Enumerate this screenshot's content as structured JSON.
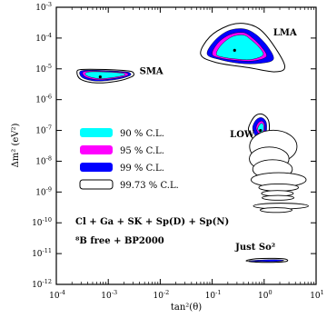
{
  "chart_data": {
    "type": "contour",
    "xlabel": "tan²(θ)",
    "ylabel": "Δm² (eV²)",
    "x_scale": "log",
    "y_scale": "log",
    "xlim": [
      0.0001,
      10
    ],
    "ylim": [
      1e-12,
      0.001
    ],
    "x_ticks": [
      {
        "value": 0.0001,
        "base": "10",
        "exp": "-4"
      },
      {
        "value": 0.001,
        "base": "10",
        "exp": "-3"
      },
      {
        "value": 0.01,
        "base": "10",
        "exp": "-2"
      },
      {
        "value": 0.1,
        "base": "10",
        "exp": "-1"
      },
      {
        "value": 1,
        "base": "10",
        "exp": "0"
      },
      {
        "value": 10,
        "base": "10",
        "exp": "1"
      }
    ],
    "y_ticks": [
      {
        "value": 1e-12,
        "base": "10",
        "exp": "-12"
      },
      {
        "value": 1e-11,
        "base": "10",
        "exp": "-11"
      },
      {
        "value": 1e-10,
        "base": "10",
        "exp": "-10"
      },
      {
        "value": 1e-09,
        "base": "10",
        "exp": "-9"
      },
      {
        "value": 1e-08,
        "base": "10",
        "exp": "-8"
      },
      {
        "value": 1e-07,
        "base": "10",
        "exp": "-7"
      },
      {
        "value": 1e-06,
        "base": "10",
        "exp": "-6"
      },
      {
        "value": 1e-05,
        "base": "10",
        "exp": "-5"
      },
      {
        "value": 0.0001,
        "base": "10",
        "exp": "-4"
      },
      {
        "value": 0.001,
        "base": "10",
        "exp": "-3"
      }
    ],
    "series": [
      {
        "name": "90 % C.L.",
        "color": "#00ffff"
      },
      {
        "name": "95 % C.L.",
        "color": "#ff00ff"
      },
      {
        "name": "99 % C.L.",
        "color": "#0000ff"
      },
      {
        "name": "99.73 % C.L.",
        "color": "#ffffff"
      }
    ],
    "regions": [
      {
        "name": "LMA",
        "best_fit": {
          "x": 0.27,
          "y": 4e-05
        },
        "contours": {
          "99.73 % C.L.": [
            [
              0.06,
              3e-05
            ],
            [
              0.09,
              0.00011
            ],
            [
              0.2,
              0.00025
            ],
            [
              0.4,
              0.0003
            ],
            [
              0.8,
              0.0002
            ],
            [
              1.5,
              6e-05
            ],
            [
              2.5,
              1.2e-05
            ],
            [
              1.6,
              8e-06
            ],
            [
              0.5,
              1.1e-05
            ],
            [
              0.12,
              1.6e-05
            ]
          ],
          "99 % C.L.": [
            [
              0.08,
              3e-05
            ],
            [
              0.11,
              8e-05
            ],
            [
              0.2,
              0.00017
            ],
            [
              0.4,
              0.0002
            ],
            [
              0.7,
              0.00013
            ],
            [
              1.2,
              5e-05
            ],
            [
              1.5,
              2e-05
            ],
            [
              0.8,
              1.5e-05
            ],
            [
              0.35,
              1.5e-05
            ],
            [
              0.14,
              2e-05
            ]
          ],
          "95 % C.L.": [
            [
              0.1,
              3e-05
            ],
            [
              0.13,
              7e-05
            ],
            [
              0.22,
              0.00013
            ],
            [
              0.4,
              0.00015
            ],
            [
              0.6,
              0.0001
            ],
            [
              0.9,
              5e-05
            ],
            [
              1.1,
              2.5e-05
            ],
            [
              0.6,
              1.8e-05
            ],
            [
              0.28,
              1.9e-05
            ],
            [
              0.15,
              2.2e-05
            ]
          ],
          "90 % C.L.": [
            [
              0.12,
              3e-05
            ],
            [
              0.15,
              6e-05
            ],
            [
              0.24,
              0.00011
            ],
            [
              0.4,
              0.000125
            ],
            [
              0.55,
              9e-05
            ],
            [
              0.8,
              5e-05
            ],
            [
              0.95,
              2.8e-05
            ],
            [
              0.55,
              2e-05
            ],
            [
              0.28,
              2.1e-05
            ],
            [
              0.16,
              2.4e-05
            ]
          ]
        }
      },
      {
        "name": "SMA",
        "best_fit": {
          "x": 0.0007,
          "y": 5.5e-06
        },
        "contours": {
          "99.73 % C.L.": [
            [
              0.00025,
              7.5e-06
            ],
            [
              0.0003,
              9.5e-06
            ],
            [
              0.0009,
              9.5e-06
            ],
            [
              0.0025,
              8.5e-06
            ],
            [
              0.0031,
              7e-06
            ],
            [
              0.0028,
              5.5e-06
            ],
            [
              0.0015,
              4e-06
            ],
            [
              0.0006,
              3.5e-06
            ],
            [
              0.0003,
              4.5e-06
            ]
          ],
          "99 % C.L.": [
            [
              0.00028,
              7.5e-06
            ],
            [
              0.00035,
              9e-06
            ],
            [
              0.0009,
              8.8e-06
            ],
            [
              0.0022,
              8e-06
            ],
            [
              0.0027,
              7e-06
            ],
            [
              0.0025,
              5.8e-06
            ],
            [
              0.0014,
              4.5e-06
            ],
            [
              0.0006,
              4e-06
            ],
            [
              0.00033,
              5e-06
            ]
          ],
          "95 % C.L.": [
            [
              0.00032,
              7.3e-06
            ],
            [
              0.0004,
              8.5e-06
            ],
            [
              0.0009,
              8.3e-06
            ],
            [
              0.002,
              7.6e-06
            ],
            [
              0.0024,
              6.8e-06
            ],
            [
              0.0022,
              5.9e-06
            ],
            [
              0.0013,
              4.9e-06
            ],
            [
              0.00065,
              4.4e-06
            ],
            [
              0.00038,
              5.3e-06
            ]
          ],
          "90 % C.L.": [
            [
              0.00036,
              7e-06
            ],
            [
              0.00045,
              8e-06
            ],
            [
              0.0009,
              7.9e-06
            ],
            [
              0.0018,
              7.3e-06
            ],
            [
              0.0021,
              6.6e-06
            ],
            [
              0.0019,
              6e-06
            ],
            [
              0.0012,
              5.2e-06
            ],
            [
              0.00068,
              4.8e-06
            ],
            [
              0.00042,
              5.6e-06
            ]
          ]
        }
      },
      {
        "name": "LOW",
        "best_fit": {
          "x": 0.85,
          "y": 1e-07
        },
        "contours": {
          "99.73 % C.L.": [
            [
              0.5,
              1.2e-07
            ],
            [
              0.65,
              2.8e-07
            ],
            [
              0.9,
              3.4e-07
            ],
            [
              1.2,
              2.2e-07
            ],
            [
              1.25,
              9e-08
            ],
            [
              1.1,
              4e-08
            ],
            [
              0.9,
              2.5e-08
            ],
            [
              0.7,
              4e-08
            ],
            [
              0.55,
              7e-08
            ]
          ],
          "99 % C.L.": [
            [
              0.6,
              1.2e-07
            ],
            [
              0.7,
              2.2e-07
            ],
            [
              0.9,
              2.6e-07
            ],
            [
              1.1,
              1.8e-07
            ],
            [
              1.1,
              8e-08
            ],
            [
              1,
              5e-08
            ],
            [
              0.85,
              4e-08
            ],
            [
              0.7,
              6e-08
            ]
          ],
          "95 % C.L.": [
            [
              0.7,
              1.2e-07
            ],
            [
              0.78,
              1.8e-07
            ],
            [
              0.92,
              2e-07
            ],
            [
              1.02,
              1.5e-07
            ],
            [
              1,
              9e-08
            ],
            [
              0.9,
              7e-08
            ],
            [
              0.78,
              8e-08
            ]
          ],
          "90 % C.L.": [
            [
              0.75,
              1.15e-07
            ],
            [
              0.82,
              1.55e-07
            ],
            [
              0.92,
              1.7e-07
            ],
            [
              0.98,
              1.35e-07
            ],
            [
              0.95,
              9.5e-08
            ],
            [
              0.86,
              8.5e-08
            ],
            [
              0.79,
              9.5e-08
            ]
          ]
        },
        "islands": [
          {
            "x": 1.5,
            "y": 3e-08,
            "rx": 0.06,
            "ry": 0.07
          },
          {
            "x": 1.25,
            "y": 1.2e-08,
            "rx": 0.05,
            "ry": 0.05
          },
          {
            "x": 1.45,
            "y": 5.5e-09,
            "rx": 0.05,
            "ry": 0.04
          },
          {
            "x": 1.9,
            "y": 2.5e-09,
            "rx": 0.07,
            "ry": 0.03
          },
          {
            "x": 1.9,
            "y": 1.4e-09,
            "rx": 0.05,
            "ry": 0.015
          },
          {
            "x": 1.8,
            "y": 9e-10,
            "rx": 0.04,
            "ry": 0.012
          },
          {
            "x": 1.85,
            "y": 6.5e-10,
            "rx": 0.04,
            "ry": 0.01
          },
          {
            "x": 2.1,
            "y": 3.5e-10,
            "rx": 0.07,
            "ry": 0.012
          },
          {
            "x": 1.7,
            "y": 2.6e-10,
            "rx": 0.04,
            "ry": 0.01
          }
        ]
      },
      {
        "name": "Just So²",
        "contours": {
          "99.73 % C.L.": [
            [
              0.45,
              5.8e-12
            ],
            [
              0.7,
              6.8e-12
            ],
            [
              1.6,
              7e-12
            ],
            [
              2.6,
              6.6e-12
            ],
            [
              2.7,
              5.6e-12
            ],
            [
              1.5,
              5.2e-12
            ],
            [
              0.7,
              5.3e-12
            ]
          ],
          "99 % C.L.": [
            [
              0.55,
              5.9e-12
            ],
            [
              1.5,
              6.4e-12
            ],
            [
              2.4,
              6e-12
            ],
            [
              1.5,
              5.5e-12
            ],
            [
              0.6,
              5.6e-12
            ]
          ]
        }
      }
    ],
    "legend": {
      "placement": "center-left"
    },
    "annotations": [
      {
        "id": "LMA",
        "text": "LMA",
        "x": 1.5,
        "y": 0.00012
      },
      {
        "id": "SMA",
        "text": "SMA",
        "x": 0.004,
        "y": 6.8e-06
      },
      {
        "id": "LOW",
        "text": "LOW",
        "x": 0.22,
        "y": 6e-08
      },
      {
        "id": "JustSo",
        "text": "Just So²",
        "x": 0.28,
        "y": 1.3e-11
      }
    ],
    "notes": [
      {
        "id": "analysis",
        "text": "Cl + Ga + SK + Sp(D) + Sp(N)"
      },
      {
        "id": "flux",
        "text": "⁸B free + BP2000"
      }
    ],
    "grid": false
  }
}
